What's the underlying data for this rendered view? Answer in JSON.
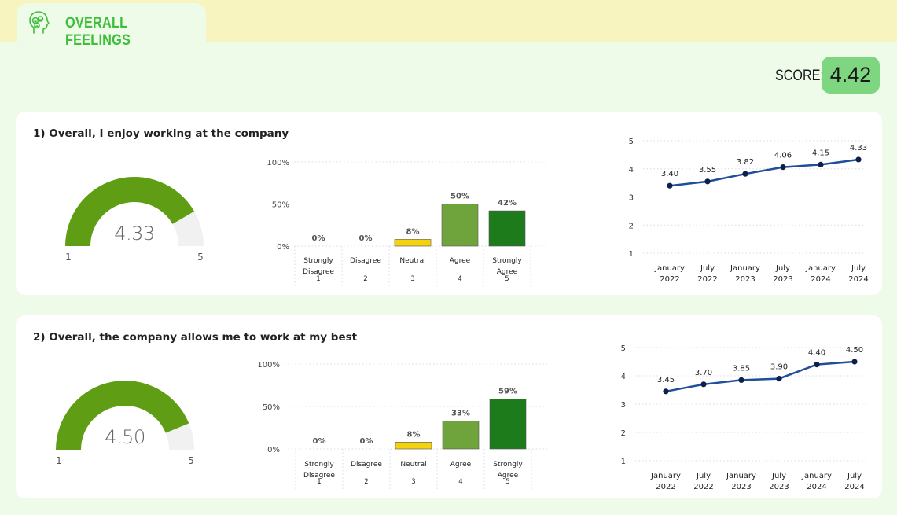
{
  "header": {
    "title": "OVERALL FEELINGS",
    "icon": "head-smiley-icon",
    "accent_color": "#3fbe3b"
  },
  "score": {
    "label": "SCORE:",
    "value": "4.42"
  },
  "colors": {
    "gauge_fill": "#5f9e14",
    "gauge_track": "#f1f1f1",
    "bar_strongly_disagree": "#c0392b",
    "bar_disagree": "#e67e22",
    "bar_neutral": "#f5d20f",
    "bar_agree": "#6fa33b",
    "bar_strongly_agree": "#1e7b1c",
    "line": "#1f4e9a",
    "marker": "#0d1f4d"
  },
  "questions": [
    {
      "title": "1) Overall, I enjoy working at the company",
      "gauge": {
        "value": 4.33,
        "value_label": "4.33",
        "min": 1,
        "max": 5,
        "min_label": "1",
        "max_label": "5"
      },
      "distribution": {
        "type": "bar",
        "yticks": [
          "0%",
          "50%",
          "100%"
        ],
        "ylim": [
          0,
          100
        ],
        "categories": [
          {
            "label_lines": [
              "Strongly",
              "Disagree"
            ],
            "num": "1",
            "value": 0,
            "label": "0%"
          },
          {
            "label_lines": [
              "Disagree"
            ],
            "num": "2",
            "value": 0,
            "label": "0%"
          },
          {
            "label_lines": [
              "Neutral"
            ],
            "num": "3",
            "value": 8,
            "label": "8%"
          },
          {
            "label_lines": [
              "Agree"
            ],
            "num": "4",
            "value": 50,
            "label": "50%"
          },
          {
            "label_lines": [
              "Strongly",
              "Agree"
            ],
            "num": "5",
            "value": 42,
            "label": "42%"
          }
        ]
      },
      "trend": {
        "type": "line",
        "yticks": [
          "1",
          "2",
          "3",
          "4",
          "5"
        ],
        "ylim": [
          1,
          5
        ],
        "x": [
          [
            "January",
            "2022"
          ],
          [
            "July",
            "2022"
          ],
          [
            "January",
            "2023"
          ],
          [
            "July",
            "2023"
          ],
          [
            "January",
            "2024"
          ],
          [
            "July",
            "2024"
          ]
        ],
        "values": [
          3.4,
          3.55,
          3.82,
          4.06,
          4.15,
          4.33
        ],
        "value_labels": [
          "3.40",
          "3.55",
          "3.82",
          "4.06",
          "4.15",
          "4.33"
        ]
      }
    },
    {
      "title": "2) Overall, the company allows me to work at my best",
      "gauge": {
        "value": 4.5,
        "value_label": "4.50",
        "min": 1,
        "max": 5,
        "min_label": "1",
        "max_label": "5"
      },
      "distribution": {
        "type": "bar",
        "yticks": [
          "0%",
          "50%",
          "100%"
        ],
        "ylim": [
          0,
          100
        ],
        "categories": [
          {
            "label_lines": [
              "Strongly",
              "Disagree"
            ],
            "num": "1",
            "value": 0,
            "label": "0%"
          },
          {
            "label_lines": [
              "Disagree"
            ],
            "num": "2",
            "value": 0,
            "label": "0%"
          },
          {
            "label_lines": [
              "Neutral"
            ],
            "num": "3",
            "value": 8,
            "label": "8%"
          },
          {
            "label_lines": [
              "Agree"
            ],
            "num": "4",
            "value": 33,
            "label": "33%"
          },
          {
            "label_lines": [
              "Strongly",
              "Agree"
            ],
            "num": "5",
            "value": 59,
            "label": "59%"
          }
        ]
      },
      "trend": {
        "type": "line",
        "yticks": [
          "1",
          "2",
          "3",
          "4",
          "5"
        ],
        "ylim": [
          1,
          5
        ],
        "x": [
          [
            "January",
            "2022"
          ],
          [
            "July",
            "2022"
          ],
          [
            "January",
            "2023"
          ],
          [
            "July",
            "2023"
          ],
          [
            "January",
            "2024"
          ],
          [
            "July",
            "2024"
          ]
        ],
        "values": [
          3.45,
          3.7,
          3.85,
          3.9,
          4.4,
          4.5
        ],
        "value_labels": [
          "3.45",
          "3.70",
          "3.85",
          "3.90",
          "4.40",
          "4.50"
        ]
      }
    }
  ],
  "chart_data": [
    {
      "type": "bar",
      "categories": [
        "Strongly Disagree 1",
        "Disagree 2",
        "Neutral 3",
        "Agree 4",
        "Strongly Agree 5"
      ],
      "values": [
        0,
        0,
        8,
        50,
        42
      ],
      "ylim": [
        0,
        100
      ]
    },
    {
      "type": "line",
      "x": [
        "January 2022",
        "July 2022",
        "January 2023",
        "July 2023",
        "January 2024",
        "July 2024"
      ],
      "values": [
        3.4,
        3.55,
        3.82,
        4.06,
        4.15,
        4.33
      ],
      "ylim": [
        1,
        5
      ]
    },
    {
      "type": "bar",
      "categories": [
        "Strongly Disagree 1",
        "Disagree 2",
        "Neutral 3",
        "Agree 4",
        "Strongly Agree 5"
      ],
      "values": [
        0,
        0,
        8,
        33,
        59
      ],
      "ylim": [
        0,
        100
      ]
    },
    {
      "type": "line",
      "x": [
        "January 2022",
        "July 2022",
        "January 2023",
        "July 2023",
        "January 2024",
        "July 2024"
      ],
      "values": [
        3.45,
        3.7,
        3.85,
        3.9,
        4.4,
        4.5
      ],
      "ylim": [
        1,
        5
      ]
    }
  ]
}
